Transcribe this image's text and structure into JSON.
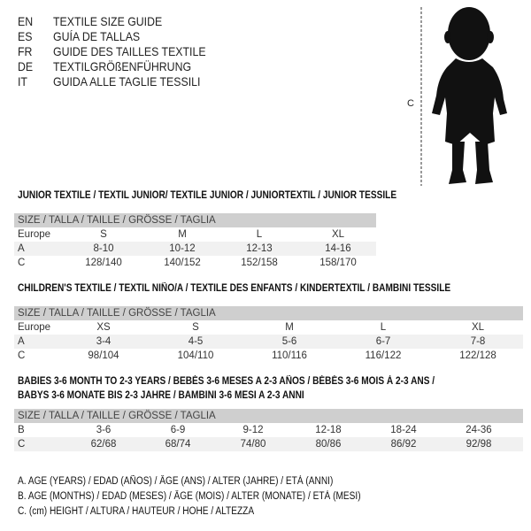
{
  "languages": [
    {
      "code": "EN",
      "name": "TEXTILE SIZE GUIDE"
    },
    {
      "code": "ES",
      "name": "GUÍA DE TALLAS"
    },
    {
      "code": "FR",
      "name": "GUIDE DES TAILLES TEXTILE"
    },
    {
      "code": "DE",
      "name": "TEXTILGRÖßENFÜHRUNG"
    },
    {
      "code": "IT",
      "name": "GUIDA ALLE TAGLIE TESSILI"
    }
  ],
  "figure": {
    "height_label": "C"
  },
  "junior": {
    "title": "JUNIOR TEXTILE / TEXTIL JUNIOR/ TEXTILE JUNIOR / JUNIORTEXTIL / JUNIOR TESSILE",
    "header": "SIZE / TALLA / TAILLE / GRÖSSE / TAGLIA",
    "rows": [
      {
        "label": "Europe",
        "values": [
          "S",
          "M",
          "L",
          "XL"
        ]
      },
      {
        "label": "A",
        "values": [
          "8-10",
          "10-12",
          "12-13",
          "14-16"
        ]
      },
      {
        "label": "C",
        "values": [
          "128/140",
          "140/152",
          "152/158",
          "158/170"
        ]
      }
    ]
  },
  "children": {
    "title": "CHILDREN'S TEXTILE / TEXTIL NIÑO/A / TEXTILE DES ENFANTS / KINDERTEXTIL / BAMBINI TESSILE",
    "header": "SIZE / TALLA / TAILLE / GRÖSSE / TAGLIA",
    "rows": [
      {
        "label": "Europe",
        "values": [
          "XS",
          "S",
          "M",
          "L",
          "XL"
        ]
      },
      {
        "label": "A",
        "values": [
          "3-4",
          "4-5",
          "5-6",
          "6-7",
          "7-8"
        ]
      },
      {
        "label": "C",
        "values": [
          "98/104",
          "104/110",
          "110/116",
          "116/122",
          "122/128"
        ]
      }
    ]
  },
  "babies": {
    "title_line1": "BABIES 3-6 MONTH TO 2-3 YEARS / BEBÉS 3-6 MESES A 2-3 AÑOS / BÉBÉS 3-6 MOIS À 2-3 ANS /",
    "title_line2": "BABYS 3-6 MONATE BIS 2-3 JAHRE / BAMBINI 3-6 MESI A 2-3 ANNI",
    "header": "SIZE / TALLA / TAILLE / GRÖSSE / TAGLIA",
    "rows": [
      {
        "label": "B",
        "values": [
          "3-6",
          "6-9",
          "9-12",
          "12-18",
          "18-24",
          "24-36"
        ]
      },
      {
        "label": "C",
        "values": [
          "62/68",
          "68/74",
          "74/80",
          "80/86",
          "86/92",
          "92/98"
        ]
      }
    ]
  },
  "legend": [
    "A. AGE (YEARS) / EDAD (AÑOS) / ÂGE (ANS) / ALTER (JAHRE) / ETÀ (ANNI)",
    "B. AGE (MONTHS) / EDAD (MESES) / ÂGE (MOIS) / ALTER (MONATE) / ETÀ (MESI)",
    "C. (cm) HEIGHT / ALTURA / HAUTEUR / HÖHE / ALTEZZA"
  ]
}
